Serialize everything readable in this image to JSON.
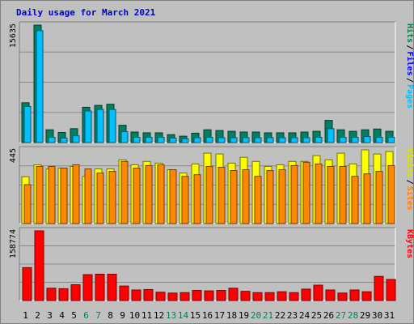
{
  "title": "Daily usage for March 2021",
  "chart_data": [
    {
      "type": "bar",
      "panel": "hits-files-pages",
      "max_label": "15635",
      "ylim": [
        0,
        15635
      ],
      "grid": true,
      "legend": [
        {
          "label": "Pages",
          "color": "#00c0ff"
        },
        {
          "label": "Files",
          "color": "#0000ff"
        },
        {
          "label": "Hits",
          "color": "#008040"
        }
      ],
      "series": [
        {
          "name": "Hits",
          "color": "#008060",
          "values": [
            5300,
            15635,
            1700,
            1350,
            1850,
            4700,
            4950,
            5100,
            2300,
            1400,
            1300,
            1300,
            1050,
            850,
            1250,
            1700,
            1600,
            1500,
            1400,
            1400,
            1300,
            1300,
            1300,
            1400,
            1500,
            2950,
            1700,
            1500,
            1700,
            1800,
            1500
          ]
        },
        {
          "name": "Files",
          "color": "#00c0ff",
          "values": [
            4800,
            14900,
            700,
            600,
            900,
            4200,
            4400,
            4400,
            1450,
            700,
            700,
            700,
            600,
            500,
            650,
            700,
            650,
            650,
            650,
            650,
            650,
            650,
            650,
            650,
            700,
            1850,
            700,
            700,
            800,
            700,
            700
          ]
        },
        {
          "name": "Pages",
          "color": "#00c0ff",
          "values": [
            0,
            0,
            0,
            0,
            0,
            0,
            0,
            0,
            0,
            0,
            0,
            0,
            0,
            0,
            0,
            0,
            0,
            0,
            0,
            0,
            0,
            0,
            0,
            0,
            0,
            0,
            0,
            0,
            0,
            0,
            0
          ]
        }
      ]
    },
    {
      "type": "bar",
      "panel": "visits-sites",
      "max_label": "445",
      "ylim": [
        0,
        445
      ],
      "grid": true,
      "legend": [
        {
          "label": "Sites",
          "color": "#ff8000"
        },
        {
          "label": "Visits",
          "color": "#e0e000"
        }
      ],
      "series": [
        {
          "name": "Visits",
          "color": "#ffff00",
          "values": [
            283,
            355,
            330,
            335,
            345,
            285,
            330,
            330,
            385,
            355,
            375,
            365,
            325,
            305,
            360,
            425,
            420,
            365,
            400,
            375,
            345,
            355,
            375,
            375,
            410,
            385,
            425,
            360,
            445,
            420,
            435
          ]
        },
        {
          "name": "Sites",
          "color": "#ff8800",
          "values": [
            235,
            345,
            345,
            335,
            355,
            330,
            305,
            315,
            375,
            335,
            350,
            355,
            325,
            285,
            295,
            345,
            340,
            320,
            325,
            285,
            320,
            325,
            350,
            370,
            360,
            345,
            345,
            285,
            300,
            315,
            350
          ]
        }
      ]
    },
    {
      "type": "bar",
      "panel": "kbytes",
      "max_label": "158774",
      "ylim": [
        0,
        158774
      ],
      "grid": true,
      "legend": [
        {
          "label": "KBytes",
          "color": "#ff0000"
        }
      ],
      "series": [
        {
          "name": "KBytes",
          "color": "#ff0000",
          "values": [
            75000,
            158774,
            28000,
            27000,
            36000,
            59000,
            60000,
            60000,
            33000,
            24000,
            25000,
            19000,
            17000,
            18000,
            23000,
            22000,
            23000,
            28000,
            21000,
            18000,
            18000,
            20000,
            18000,
            26000,
            35000,
            24000,
            17000,
            24000,
            20000,
            55000,
            48000
          ]
        }
      ]
    },
    {
      "type": "table",
      "panel": "day-axis",
      "days": [
        "1",
        "2",
        "3",
        "4",
        "5",
        "6",
        "7",
        "8",
        "9",
        "10",
        "11",
        "12",
        "13",
        "14",
        "15",
        "16",
        "17",
        "18",
        "19",
        "20",
        "21",
        "22",
        "23",
        "24",
        "25",
        "26",
        "27",
        "28",
        "29",
        "30",
        "31"
      ],
      "weekend_days": [
        "6",
        "7",
        "13",
        "14",
        "20",
        "21",
        "27",
        "28"
      ],
      "weekday_color": "#000000",
      "weekend_color": "#00805a"
    }
  ]
}
